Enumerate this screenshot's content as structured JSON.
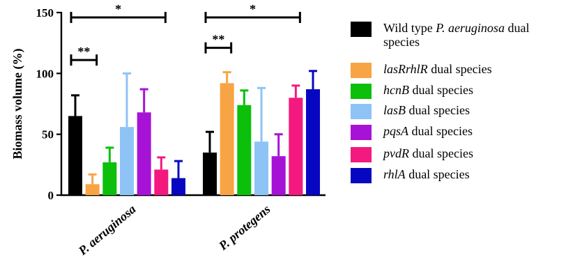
{
  "chart_data": {
    "type": "bar",
    "ylabel": "Biomass volume  (%)",
    "ylim": [
      0,
      150
    ],
    "yticks": [
      "0",
      "50",
      "100",
      "150"
    ],
    "categories": [
      "P. aeruginosa",
      "P. protegens"
    ],
    "series": [
      {
        "name": "Wild type P. aeruginosa dual species",
        "color": "#000000",
        "values": [
          65,
          35
        ],
        "errors": [
          17,
          17
        ]
      },
      {
        "name": "lasRrhlR dual species",
        "color": "#F7A444",
        "values": [
          9,
          92
        ],
        "errors": [
          8,
          9
        ]
      },
      {
        "name": "hcnB dual species",
        "color": "#0BBF0B",
        "values": [
          27,
          74
        ],
        "errors": [
          12,
          12
        ]
      },
      {
        "name": "lasB dual species",
        "color": "#8EC3F6",
        "values": [
          56,
          44
        ],
        "errors": [
          44,
          44
        ]
      },
      {
        "name": "pqsA dual species",
        "color": "#A713D6",
        "values": [
          68,
          32
        ],
        "errors": [
          19,
          18
        ]
      },
      {
        "name": "pvdR dual species",
        "color": "#F3197F",
        "values": [
          21,
          80
        ],
        "errors": [
          10,
          10
        ]
      },
      {
        "name": "rhlA dual species",
        "color": "#0707C2",
        "values": [
          14,
          87
        ],
        "errors": [
          14,
          15
        ]
      }
    ],
    "significance": [
      {
        "label": "*",
        "group": "P. aeruginosa",
        "from_series": 0,
        "to_series": 5,
        "level": 146
      },
      {
        "label": "**",
        "group": "P. aeruginosa",
        "from_series": 0,
        "to_series": 1,
        "level": 111
      },
      {
        "label": "*",
        "group": "P. protegens",
        "from_series": 0,
        "to_series": 5,
        "level": 146
      },
      {
        "label": "**",
        "group": "P. protegens",
        "from_series": 0,
        "to_series": 1,
        "level": 121
      }
    ],
    "legend": {
      "position": "right",
      "items": [
        {
          "parts": [
            {
              "text": "Wild type ",
              "italic": false
            },
            {
              "text": "P. aeruginosa",
              "italic": true
            },
            {
              "text": " dual species",
              "italic": false
            }
          ]
        },
        {
          "parts": [
            {
              "text": "lasRrhlR",
              "italic": true
            },
            {
              "text": " dual species",
              "italic": false
            }
          ]
        },
        {
          "parts": [
            {
              "text": "hcnB",
              "italic": true
            },
            {
              "text": " dual species",
              "italic": false
            }
          ]
        },
        {
          "parts": [
            {
              "text": "lasB",
              "italic": true
            },
            {
              "text": " dual species",
              "italic": false
            }
          ]
        },
        {
          "parts": [
            {
              "text": "pqsA",
              "italic": true
            },
            {
              "text": " dual species",
              "italic": false
            }
          ]
        },
        {
          "parts": [
            {
              "text": "pvdR",
              "italic": true
            },
            {
              "text": " dual species",
              "italic": false
            }
          ]
        },
        {
          "parts": [
            {
              "text": "rhlA",
              "italic": true
            },
            {
              "text": " dual species",
              "italic": false
            }
          ]
        }
      ]
    }
  }
}
